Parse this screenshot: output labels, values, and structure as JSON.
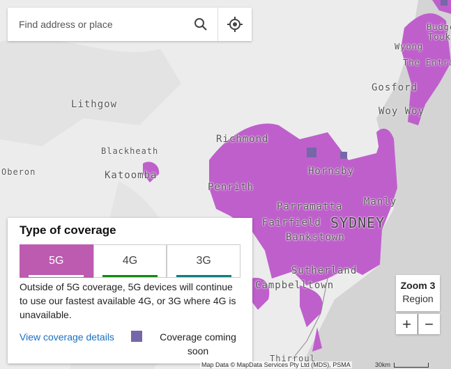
{
  "search": {
    "placeholder": "Find address or place",
    "search_icon": "search-icon",
    "locate_icon": "crosshair-locate-icon"
  },
  "map": {
    "places": [
      "Lithgow",
      "Blackheath",
      "Katoomba",
      "Oberon",
      "Richmond",
      "Penrith",
      "Hornsby",
      "Parramatta",
      "Fairfield",
      "SYDNEY",
      "Bankstown",
      "Manly",
      "Sutherland",
      "Campbelltown",
      "Thirroul",
      "Gosford",
      "Woy Woy",
      "Wyong",
      "The Entrance",
      "Budgewoi",
      "Toukley"
    ],
    "coverage_color": "#bf5fcc",
    "coming_soon_color": "#7667a8",
    "attribution": "Map Data © MapData Services Pty Ltd (MDS), PSMA",
    "scale": "30km"
  },
  "legend": {
    "title": "Type of coverage",
    "tabs": [
      {
        "label": "5G",
        "color": "#bd5bb0",
        "active": true
      },
      {
        "label": "4G",
        "color": "#138a13",
        "active": false
      },
      {
        "label": "3G",
        "color": "#0f7f7a",
        "active": false
      }
    ],
    "description": "Outside of 5G coverage, 5G devices will continue to use our fastest available 4G, or 3G where 4G is unavailable.",
    "details_link": "View coverage details",
    "coming_soon": "Coverage coming soon"
  },
  "zoom": {
    "level": "Zoom 3",
    "label": "Region",
    "plus": "+",
    "minus": "−"
  }
}
